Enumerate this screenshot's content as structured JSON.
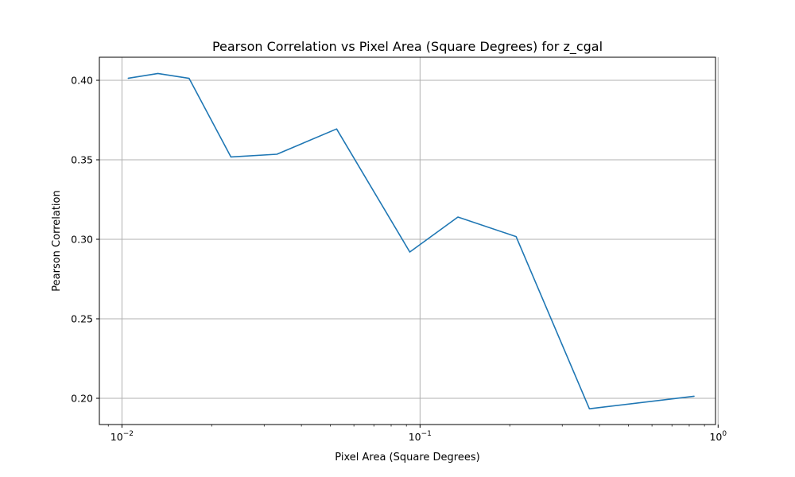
{
  "chart_data": {
    "type": "line",
    "title": "Pearson Correlation vs Pixel Area (Square Degrees) for z_cgal",
    "xlabel": "Pixel Area (Square Degrees)",
    "ylabel": "Pearson Correlation",
    "xscale": "log",
    "xlim": [
      0.0084,
      0.98
    ],
    "ylim": [
      0.1835,
      0.4145
    ],
    "grid": true,
    "x_ticks": [
      {
        "base": "10",
        "exp": "−2",
        "value": 0.01
      },
      {
        "base": "10",
        "exp": "−1",
        "value": 0.1
      },
      {
        "base": "10",
        "exp": "0",
        "value": 1
      }
    ],
    "y_ticks": [
      {
        "label": "0.20",
        "value": 0.2
      },
      {
        "label": "0.25",
        "value": 0.25
      },
      {
        "label": "0.30",
        "value": 0.3
      },
      {
        "label": "0.35",
        "value": 0.35
      },
      {
        "label": "0.40",
        "value": 0.4
      }
    ],
    "series": [
      {
        "color": "#1f77b4",
        "x": [
          0.0105,
          0.0132,
          0.0168,
          0.0232,
          0.0331,
          0.0525,
          0.0924,
          0.134,
          0.21,
          0.37,
          0.83
        ],
        "y": [
          0.4013,
          0.4043,
          0.4012,
          0.3518,
          0.3535,
          0.3694,
          0.292,
          0.314,
          0.3017,
          0.1934,
          0.2013
        ]
      }
    ]
  }
}
